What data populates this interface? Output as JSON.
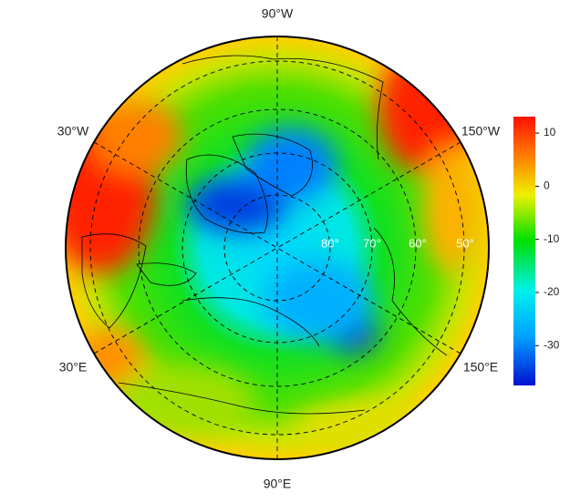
{
  "map": {
    "longitude_labels": [
      "90°W",
      "30°W",
      "150°W",
      "30°E",
      "150°E",
      "90°E"
    ],
    "latitude_labels": [
      "80°",
      "70°",
      "60°",
      "50°"
    ],
    "colorbar": {
      "lim": [
        -37.5,
        13.1
      ],
      "ticks": [
        10,
        0,
        -10,
        -20,
        -30
      ]
    }
  }
}
